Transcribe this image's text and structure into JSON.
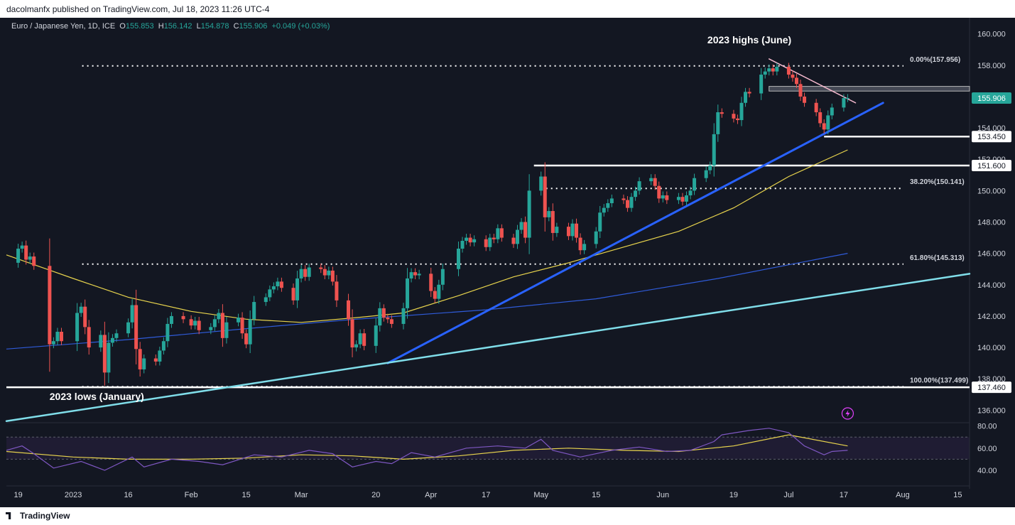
{
  "header": {
    "published": "dacolmanfx published on TradingView.com, Jul 18, 2023 11:26 UTC-4"
  },
  "footer": {
    "brand": "TradingView"
  },
  "legend": {
    "symbol": "Euro / Japanese Yen, 1D, ICE",
    "o_label": "O",
    "o": "155.853",
    "h_label": "H",
    "h": "156.142",
    "l_label": "L",
    "l": "154.878",
    "c_label": "C",
    "c": "155.906",
    "change": "+0.049 (+0.03%)"
  },
  "colors": {
    "background": "#131722",
    "up": "#26a69a",
    "down": "#ef5350",
    "sma50": "#e8d44d",
    "sma200": "#2f5bd9",
    "trend_blue": "#2962ff",
    "trend_cyan": "#80deea",
    "resistance_pink": "#f8bbd0"
  },
  "chart_data": [
    {
      "type": "candlestick",
      "y_axis": {
        "range": [
          135.2,
          160.8
        ],
        "ticks": [
          "160.000",
          "158.000",
          "156.000",
          "154.000",
          "152.000",
          "150.000",
          "148.000",
          "146.000",
          "144.000",
          "142.000",
          "140.000",
          "138.000",
          "136.000"
        ]
      },
      "x_axis": {
        "range": [
          "2022-12-16",
          "2023-08-18"
        ],
        "ticks": [
          {
            "label": "19",
            "date": "2022-12-19"
          },
          {
            "label": "2023",
            "date": "2023-01-02"
          },
          {
            "label": "16",
            "date": "2023-01-16"
          },
          {
            "label": "Feb",
            "date": "2023-02-01"
          },
          {
            "label": "15",
            "date": "2023-02-15"
          },
          {
            "label": "Mar",
            "date": "2023-03-01"
          },
          {
            "label": "20",
            "date": "2023-03-20"
          },
          {
            "label": "Apr",
            "date": "2023-04-03"
          },
          {
            "label": "17",
            "date": "2023-04-17"
          },
          {
            "label": "May",
            "date": "2023-05-01"
          },
          {
            "label": "15",
            "date": "2023-05-15"
          },
          {
            "label": "Jun",
            "date": "2023-06-01"
          },
          {
            "label": "19",
            "date": "2023-06-19"
          },
          {
            "label": "Jul",
            "date": "2023-07-03"
          },
          {
            "label": "17",
            "date": "2023-07-17"
          },
          {
            "label": "Aug",
            "date": "2023-08-01"
          },
          {
            "label": "15",
            "date": "2023-08-15"
          }
        ]
      },
      "price_labels": [
        {
          "value": 155.906,
          "text": "155.906",
          "style": "current"
        },
        {
          "value": 153.45,
          "text": "153.450",
          "style": "level"
        },
        {
          "value": 151.6,
          "text": "151.600",
          "style": "level"
        },
        {
          "value": 137.46,
          "text": "137.460",
          "style": "level"
        }
      ],
      "fibonacci": [
        {
          "value": 157.956,
          "text": "0.00%(157.956)",
          "from": "2022-12-19"
        },
        {
          "value": 150.141,
          "text": "38.20%(150.141)",
          "from": "2023-05-01"
        },
        {
          "value": 145.313,
          "text": "61.80%(145.313)",
          "from": "2022-12-19"
        },
        {
          "value": 137.499,
          "text": "100.00%(137.499)",
          "from": "2022-12-19"
        }
      ],
      "levels": [
        {
          "value": 153.45,
          "from": "2023-07-12"
        },
        {
          "value": 151.6,
          "from": "2023-05-01"
        },
        {
          "value": 137.46,
          "from": "2022-12-16"
        }
      ],
      "zone": {
        "from": "2023-06-28",
        "top": 156.65,
        "bottom": 156.35
      },
      "trendlines": [
        {
          "name": "support-blue",
          "from": [
            "2023-03-23",
            139.0
          ],
          "to": [
            "2023-07-27",
            155.6
          ],
          "color": "#2962ff",
          "width": 3
        },
        {
          "name": "support-cyan",
          "from": [
            "2022-12-16",
            135.3
          ],
          "to": [
            "2023-08-18",
            144.7
          ],
          "color": "#80deea",
          "width": 2.5
        },
        {
          "name": "resistance-pink",
          "from": [
            "2023-06-28",
            158.4
          ],
          "to": [
            "2023-07-20",
            155.6
          ],
          "color": "#f8bbd0",
          "width": 1.5
        }
      ],
      "annotations": [
        {
          "text": "2023 highs (June)",
          "date": "2023-06-23",
          "value": 159.4
        },
        {
          "text": "2023 lows (January)",
          "date": "2023-01-08",
          "value": 136.65
        }
      ],
      "close_points": [
        [
          "2022-12-16",
          145.4
        ],
        [
          "2022-12-19",
          146.3
        ],
        [
          "2022-12-20",
          146.5
        ],
        [
          "2022-12-21",
          145.6
        ],
        [
          "2022-12-22",
          145.8
        ],
        [
          "2022-12-23",
          145.2
        ],
        [
          "2022-12-27",
          140.2
        ],
        [
          "2022-12-28",
          140.4
        ],
        [
          "2022-12-29",
          141.0
        ],
        [
          "2022-12-30",
          140.4
        ],
        [
          "2023-01-03",
          142.2
        ],
        [
          "2023-01-04",
          142.6
        ],
        [
          "2023-01-05",
          141.3
        ],
        [
          "2023-01-06",
          140.0
        ],
        [
          "2023-01-09",
          140.8
        ],
        [
          "2023-01-10",
          138.4
        ],
        [
          "2023-01-11",
          140.3
        ],
        [
          "2023-01-12",
          140.6
        ],
        [
          "2023-01-13",
          140.9
        ],
        [
          "2023-01-16",
          141.6
        ],
        [
          "2023-01-17",
          142.7
        ],
        [
          "2023-01-18",
          139.9
        ],
        [
          "2023-01-19",
          138.6
        ],
        [
          "2023-01-20",
          139.3
        ],
        [
          "2023-01-23",
          139.1
        ],
        [
          "2023-01-24",
          139.8
        ],
        [
          "2023-01-25",
          140.4
        ],
        [
          "2023-01-26",
          141.5
        ],
        [
          "2023-01-27",
          142.0
        ],
        [
          "2023-01-30",
          141.8
        ],
        [
          "2023-02-01",
          141.4
        ],
        [
          "2023-02-02",
          141.7
        ],
        [
          "2023-02-03",
          141.1
        ],
        [
          "2023-02-06",
          141.3
        ],
        [
          "2023-02-07",
          141.8
        ],
        [
          "2023-02-08",
          142.2
        ],
        [
          "2023-02-09",
          140.6
        ],
        [
          "2023-02-10",
          141.6
        ],
        [
          "2023-02-13",
          141.9
        ],
        [
          "2023-02-14",
          140.9
        ],
        [
          "2023-02-15",
          140.2
        ],
        [
          "2023-02-16",
          141.8
        ],
        [
          "2023-02-17",
          142.9
        ],
        [
          "2023-02-20",
          143.2
        ],
        [
          "2023-02-21",
          143.7
        ],
        [
          "2023-02-22",
          143.9
        ],
        [
          "2023-02-23",
          144.2
        ],
        [
          "2023-02-24",
          143.8
        ],
        [
          "2023-02-27",
          143.0
        ],
        [
          "2023-02-28",
          144.4
        ],
        [
          "2023-03-01",
          145.0
        ],
        [
          "2023-03-02",
          144.5
        ],
        [
          "2023-03-03",
          145.1
        ],
        [
          "2023-03-06",
          145.0
        ],
        [
          "2023-03-07",
          144.6
        ],
        [
          "2023-03-08",
          144.9
        ],
        [
          "2023-03-09",
          144.2
        ],
        [
          "2023-03-10",
          143.0
        ],
        [
          "2023-03-13",
          141.8
        ],
        [
          "2023-03-14",
          140.0
        ],
        [
          "2023-03-15",
          140.2
        ],
        [
          "2023-03-16",
          140.9
        ],
        [
          "2023-03-17",
          140.1
        ],
        [
          "2023-03-20",
          141.4
        ],
        [
          "2023-03-21",
          142.5
        ],
        [
          "2023-03-22",
          141.9
        ],
        [
          "2023-03-23",
          141.8
        ],
        [
          "2023-03-24",
          141.5
        ],
        [
          "2023-03-27",
          142.5
        ],
        [
          "2023-03-28",
          144.4
        ],
        [
          "2023-03-29",
          144.8
        ],
        [
          "2023-03-30",
          144.6
        ],
        [
          "2023-03-31",
          144.7
        ],
        [
          "2023-04-03",
          143.6
        ],
        [
          "2023-04-04",
          143.1
        ],
        [
          "2023-04-05",
          144.0
        ],
        [
          "2023-04-06",
          145.0
        ],
        [
          "2023-04-10",
          146.3
        ],
        [
          "2023-04-11",
          146.8
        ],
        [
          "2023-04-12",
          147.0
        ],
        [
          "2023-04-13",
          146.7
        ],
        [
          "2023-04-14",
          146.9
        ],
        [
          "2023-04-17",
          146.4
        ],
        [
          "2023-04-18",
          147.0
        ],
        [
          "2023-04-19",
          146.9
        ],
        [
          "2023-04-20",
          147.6
        ],
        [
          "2023-04-21",
          147.0
        ],
        [
          "2023-04-24",
          146.6
        ],
        [
          "2023-04-25",
          147.5
        ],
        [
          "2023-04-26",
          148.0
        ],
        [
          "2023-04-27",
          147.0
        ],
        [
          "2023-04-28",
          150.0
        ],
        [
          "2023-05-01",
          150.9
        ],
        [
          "2023-05-02",
          148.3
        ],
        [
          "2023-05-03",
          148.7
        ],
        [
          "2023-05-04",
          147.3
        ],
        [
          "2023-05-05",
          147.7
        ],
        [
          "2023-05-08",
          147.1
        ],
        [
          "2023-05-09",
          147.9
        ],
        [
          "2023-05-10",
          147.0
        ],
        [
          "2023-05-11",
          146.2
        ],
        [
          "2023-05-12",
          146.6
        ],
        [
          "2023-05-15",
          147.4
        ],
        [
          "2023-05-16",
          148.6
        ],
        [
          "2023-05-17",
          148.9
        ],
        [
          "2023-05-18",
          149.2
        ],
        [
          "2023-05-19",
          149.5
        ],
        [
          "2023-05-22",
          149.4
        ],
        [
          "2023-05-23",
          148.9
        ],
        [
          "2023-05-24",
          149.6
        ],
        [
          "2023-05-25",
          150.0
        ],
        [
          "2023-05-26",
          150.6
        ],
        [
          "2023-05-29",
          150.8
        ],
        [
          "2023-05-30",
          150.3
        ],
        [
          "2023-05-31",
          149.5
        ],
        [
          "2023-06-01",
          149.7
        ],
        [
          "2023-06-02",
          149.4
        ],
        [
          "2023-06-05",
          149.6
        ],
        [
          "2023-06-06",
          149.3
        ],
        [
          "2023-06-07",
          149.7
        ],
        [
          "2023-06-08",
          150.0
        ],
        [
          "2023-06-09",
          150.8
        ],
        [
          "2023-06-12",
          151.3
        ],
        [
          "2023-06-13",
          151.6
        ],
        [
          "2023-06-14",
          153.6
        ],
        [
          "2023-06-15",
          155.0
        ],
        [
          "2023-06-16",
          154.9
        ],
        [
          "2023-06-19",
          154.6
        ],
        [
          "2023-06-20",
          154.5
        ],
        [
          "2023-06-21",
          155.6
        ],
        [
          "2023-06-22",
          156.3
        ],
        [
          "2023-06-23",
          156.2
        ],
        [
          "2023-06-26",
          157.4
        ],
        [
          "2023-06-27",
          157.6
        ],
        [
          "2023-06-28",
          157.8
        ],
        [
          "2023-06-29",
          157.6
        ],
        [
          "2023-06-30",
          157.9
        ],
        [
          "2023-07-03",
          157.4
        ],
        [
          "2023-07-04",
          157.2
        ],
        [
          "2023-07-05",
          156.8
        ],
        [
          "2023-07-06",
          156.0
        ],
        [
          "2023-07-07",
          155.6
        ],
        [
          "2023-07-10",
          155.0
        ],
        [
          "2023-07-11",
          154.3
        ],
        [
          "2023-07-12",
          153.9
        ],
        [
          "2023-07-13",
          154.8
        ],
        [
          "2023-07-14",
          155.3
        ],
        [
          "2023-07-17",
          155.9
        ],
        [
          "2023-07-18",
          155.906
        ]
      ],
      "sma50": [
        [
          "2022-12-16",
          145.9
        ],
        [
          "2023-01-02",
          144.4
        ],
        [
          "2023-01-16",
          143.2
        ],
        [
          "2023-02-01",
          142.3
        ],
        [
          "2023-02-15",
          141.8
        ],
        [
          "2023-03-01",
          141.6
        ],
        [
          "2023-03-15",
          141.9
        ],
        [
          "2023-03-27",
          142.2
        ],
        [
          "2023-04-10",
          143.3
        ],
        [
          "2023-04-24",
          144.5
        ],
        [
          "2023-05-08",
          145.4
        ],
        [
          "2023-05-22",
          146.4
        ],
        [
          "2023-06-05",
          147.4
        ],
        [
          "2023-06-19",
          148.9
        ],
        [
          "2023-07-03",
          150.9
        ],
        [
          "2023-07-18",
          152.6
        ]
      ],
      "sma200": [
        [
          "2022-12-16",
          139.9
        ],
        [
          "2023-01-16",
          140.5
        ],
        [
          "2023-02-15",
          141.2
        ],
        [
          "2023-03-15",
          141.8
        ],
        [
          "2023-04-17",
          142.4
        ],
        [
          "2023-05-15",
          143.1
        ],
        [
          "2023-06-15",
          144.4
        ],
        [
          "2023-07-18",
          146.0
        ]
      ]
    },
    {
      "type": "line",
      "y_axis": {
        "range": [
          31,
          83
        ],
        "ticks": [
          "80.00",
          "60.00",
          "40.00"
        ],
        "bands": [
          70,
          50
        ]
      },
      "rsi": [
        [
          "2022-12-16",
          58
        ],
        [
          "2022-12-20",
          62
        ],
        [
          "2022-12-23",
          55
        ],
        [
          "2022-12-28",
          42
        ],
        [
          "2023-01-04",
          48
        ],
        [
          "2023-01-10",
          40
        ],
        [
          "2023-01-17",
          52
        ],
        [
          "2023-01-20",
          43
        ],
        [
          "2023-01-27",
          50
        ],
        [
          "2023-02-03",
          48
        ],
        [
          "2023-02-09",
          45
        ],
        [
          "2023-02-17",
          54
        ],
        [
          "2023-02-24",
          52
        ],
        [
          "2023-03-03",
          58
        ],
        [
          "2023-03-09",
          55
        ],
        [
          "2023-03-14",
          43
        ],
        [
          "2023-03-20",
          48
        ],
        [
          "2023-03-24",
          46
        ],
        [
          "2023-03-29",
          56
        ],
        [
          "2023-04-04",
          52
        ],
        [
          "2023-04-12",
          60
        ],
        [
          "2023-04-20",
          62
        ],
        [
          "2023-04-27",
          60
        ],
        [
          "2023-05-01",
          68
        ],
        [
          "2023-05-04",
          58
        ],
        [
          "2023-05-11",
          52
        ],
        [
          "2023-05-19",
          58
        ],
        [
          "2023-05-26",
          61
        ],
        [
          "2023-06-02",
          57
        ],
        [
          "2023-06-08",
          58
        ],
        [
          "2023-06-14",
          66
        ],
        [
          "2023-06-16",
          72
        ],
        [
          "2023-06-23",
          76
        ],
        [
          "2023-06-28",
          78
        ],
        [
          "2023-07-03",
          74
        ],
        [
          "2023-07-07",
          62
        ],
        [
          "2023-07-12",
          54
        ],
        [
          "2023-07-14",
          57
        ],
        [
          "2023-07-18",
          58
        ]
      ],
      "rsi_ma": [
        [
          "2022-12-16",
          57
        ],
        [
          "2023-01-02",
          52
        ],
        [
          "2023-01-16",
          50
        ],
        [
          "2023-02-01",
          50
        ],
        [
          "2023-02-15",
          51
        ],
        [
          "2023-03-01",
          54
        ],
        [
          "2023-03-14",
          53
        ],
        [
          "2023-03-27",
          50
        ],
        [
          "2023-04-10",
          53
        ],
        [
          "2023-04-24",
          58
        ],
        [
          "2023-05-08",
          60
        ],
        [
          "2023-05-22",
          58
        ],
        [
          "2023-06-05",
          57
        ],
        [
          "2023-06-19",
          62
        ],
        [
          "2023-07-03",
          72
        ],
        [
          "2023-07-18",
          62
        ]
      ]
    }
  ]
}
